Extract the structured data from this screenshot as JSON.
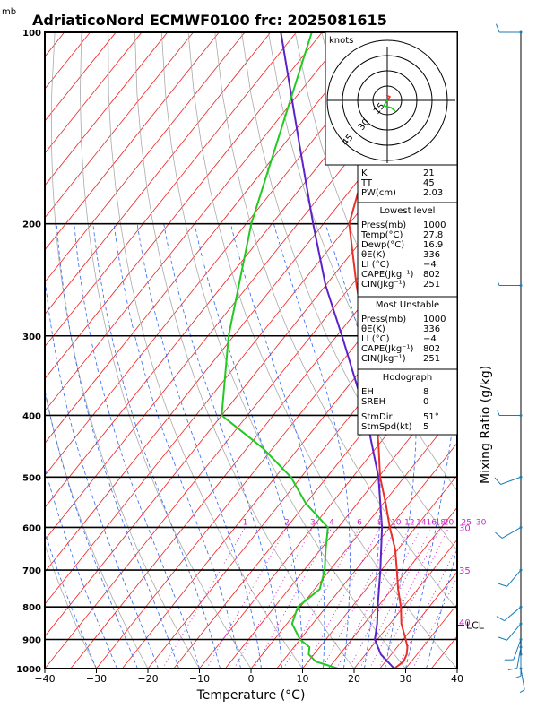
{
  "header": {
    "unit_mb": "mb",
    "title": "AdriaticoNord ECMWF0100 frc: 2025081615"
  },
  "chart_data": {
    "type": "skew-t",
    "xlabel": "Temperature (°C)",
    "ylabel_right": "Mixing Ratio (g/kg)",
    "xlim": [
      -40,
      40
    ],
    "ylim": [
      1000,
      100
    ],
    "x_ticks": [
      "−40",
      "−30",
      "−20",
      "−10",
      "0",
      "10",
      "20",
      "30",
      "40"
    ],
    "y_ticks": [
      "100",
      "200",
      "300",
      "400",
      "500",
      "600",
      "700",
      "800",
      "900",
      "1000"
    ],
    "isotherm_labels": [
      "30",
      "35",
      "40"
    ],
    "mixing_ratio_labels": [
      "1",
      "2",
      "3",
      "4",
      "6",
      "8",
      "10",
      "12",
      "14",
      "16",
      "18",
      "20",
      "25",
      "30"
    ],
    "lcl_label": "LCL",
    "temperature": [
      {
        "p": 1000,
        "t": 27.8
      },
      {
        "p": 975,
        "t": 28.5
      },
      {
        "p": 950,
        "t": 28.0
      },
      {
        "p": 925,
        "t": 27.0
      },
      {
        "p": 900,
        "t": 25.5
      },
      {
        "p": 850,
        "t": 22.2
      },
      {
        "p": 800,
        "t": 19.5
      },
      {
        "p": 750,
        "t": 16.2
      },
      {
        "p": 700,
        "t": 13.0
      },
      {
        "p": 650,
        "t": 9.5
      },
      {
        "p": 600,
        "t": 5.0
      },
      {
        "p": 550,
        "t": 0.5
      },
      {
        "p": 500,
        "t": -4.7
      },
      {
        "p": 450,
        "t": -9.5
      },
      {
        "p": 400,
        "t": -15.0
      },
      {
        "p": 350,
        "t": -21.5
      },
      {
        "p": 300,
        "t": -29.5
      },
      {
        "p": 250,
        "t": -39.0
      },
      {
        "p": 200,
        "t": -50.0
      },
      {
        "p": 150,
        "t": -58.0
      },
      {
        "p": 100,
        "t": -65.0
      }
    ],
    "dewpoint": [
      {
        "p": 1000,
        "t": 16.9
      },
      {
        "p": 975,
        "t": 11.5
      },
      {
        "p": 950,
        "t": 9.0
      },
      {
        "p": 925,
        "t": 8.0
      },
      {
        "p": 900,
        "t": 5.0
      },
      {
        "p": 850,
        "t": 1.0
      },
      {
        "p": 800,
        "t": -0.5
      },
      {
        "p": 750,
        "t": 1.0
      },
      {
        "p": 700,
        "t": -1.0
      },
      {
        "p": 650,
        "t": -4.0
      },
      {
        "p": 600,
        "t": -7.0
      },
      {
        "p": 550,
        "t": -15.0
      },
      {
        "p": 500,
        "t": -22.0
      },
      {
        "p": 450,
        "t": -32.0
      },
      {
        "p": 400,
        "t": -45.0
      },
      {
        "p": 300,
        "t": -56.0
      },
      {
        "p": 200,
        "t": -69.0
      },
      {
        "p": 100,
        "t": -87.0
      }
    ],
    "parcel": [
      {
        "p": 1000,
        "t": 27.8
      },
      {
        "p": 950,
        "t": 23.0
      },
      {
        "p": 900,
        "t": 19.5
      },
      {
        "p": 850,
        "t": 17.5
      },
      {
        "p": 800,
        "t": 15.0
      },
      {
        "p": 700,
        "t": 9.8
      },
      {
        "p": 600,
        "t": 3.5
      },
      {
        "p": 500,
        "t": -5.0
      },
      {
        "p": 400,
        "t": -17.0
      },
      {
        "p": 300,
        "t": -34.0
      },
      {
        "p": 250,
        "t": -45.0
      },
      {
        "p": 200,
        "t": -57.0
      },
      {
        "p": 150,
        "t": -72.0
      },
      {
        "p": 100,
        "t": -93.0
      }
    ],
    "hodograph": {
      "label": "knots",
      "ring_labels": [
        "15",
        "30",
        "45"
      ]
    }
  },
  "indices": {
    "basic": [
      {
        "label": "K",
        "value": "21"
      },
      {
        "label": "TT",
        "value": "45"
      },
      {
        "label": "PW(cm)",
        "value": "2.03"
      }
    ],
    "lowest_level": {
      "title": "Lowest level",
      "rows": [
        {
          "label": "Press(mb)",
          "value": "1000"
        },
        {
          "label": "Temp(°C)",
          "value": "27.8"
        },
        {
          "label": "Dewp(°C)",
          "value": "16.9"
        },
        {
          "label": "θE(K)",
          "value": "336"
        },
        {
          "label": "LI (°C)",
          "value": "−4"
        },
        {
          "label": "CAPE(Jkg⁻¹)",
          "value": "802"
        },
        {
          "label": "CIN(Jkg⁻¹)",
          "value": "251"
        }
      ]
    },
    "most_unstable": {
      "title": "Most Unstable",
      "rows": [
        {
          "label": "Press(mb)",
          "value": "1000"
        },
        {
          "label": "θE(K)",
          "value": "336"
        },
        {
          "label": "LI (°C)",
          "value": "−4"
        },
        {
          "label": "CAPE(Jkg⁻¹)",
          "value": "802"
        },
        {
          "label": "CIN(Jkg⁻¹)",
          "value": "251"
        }
      ]
    },
    "hodograph_box": {
      "title": "Hodograph",
      "rows": [
        {
          "label": "EH",
          "value": "8"
        },
        {
          "label": "SREH",
          "value": "0"
        },
        {
          "label": "StmDir",
          "value": "51°"
        },
        {
          "label": "StmSpd(kt)",
          "value": "5"
        }
      ]
    }
  },
  "wind_barbs": [
    {
      "p": 100,
      "dir": 270,
      "spd": 10
    },
    {
      "p": 250,
      "dir": 270,
      "spd": 5
    },
    {
      "p": 400,
      "dir": 270,
      "spd": 5
    },
    {
      "p": 500,
      "dir": 250,
      "spd": 10
    },
    {
      "p": 600,
      "dir": 240,
      "spd": 10
    },
    {
      "p": 700,
      "dir": 220,
      "spd": 10
    },
    {
      "p": 800,
      "dir": 230,
      "spd": 10
    },
    {
      "p": 850,
      "dir": 220,
      "spd": 10
    },
    {
      "p": 900,
      "dir": 200,
      "spd": 10
    },
    {
      "p": 925,
      "dir": 190,
      "spd": 10
    },
    {
      "p": 950,
      "dir": 180,
      "spd": 5
    },
    {
      "p": 1000,
      "dir": 170,
      "spd": 5
    }
  ],
  "colors": {
    "temperature": "#e8302a",
    "dewpoint": "#22c922",
    "parcel": "#5a22c8",
    "isotherm": "#ee2222",
    "dry_adiabat": "#aaaaaa",
    "moist_adiabat": "#3366ee",
    "mixing_ratio": "#cc22cc",
    "barb": "#1a7ab8"
  }
}
